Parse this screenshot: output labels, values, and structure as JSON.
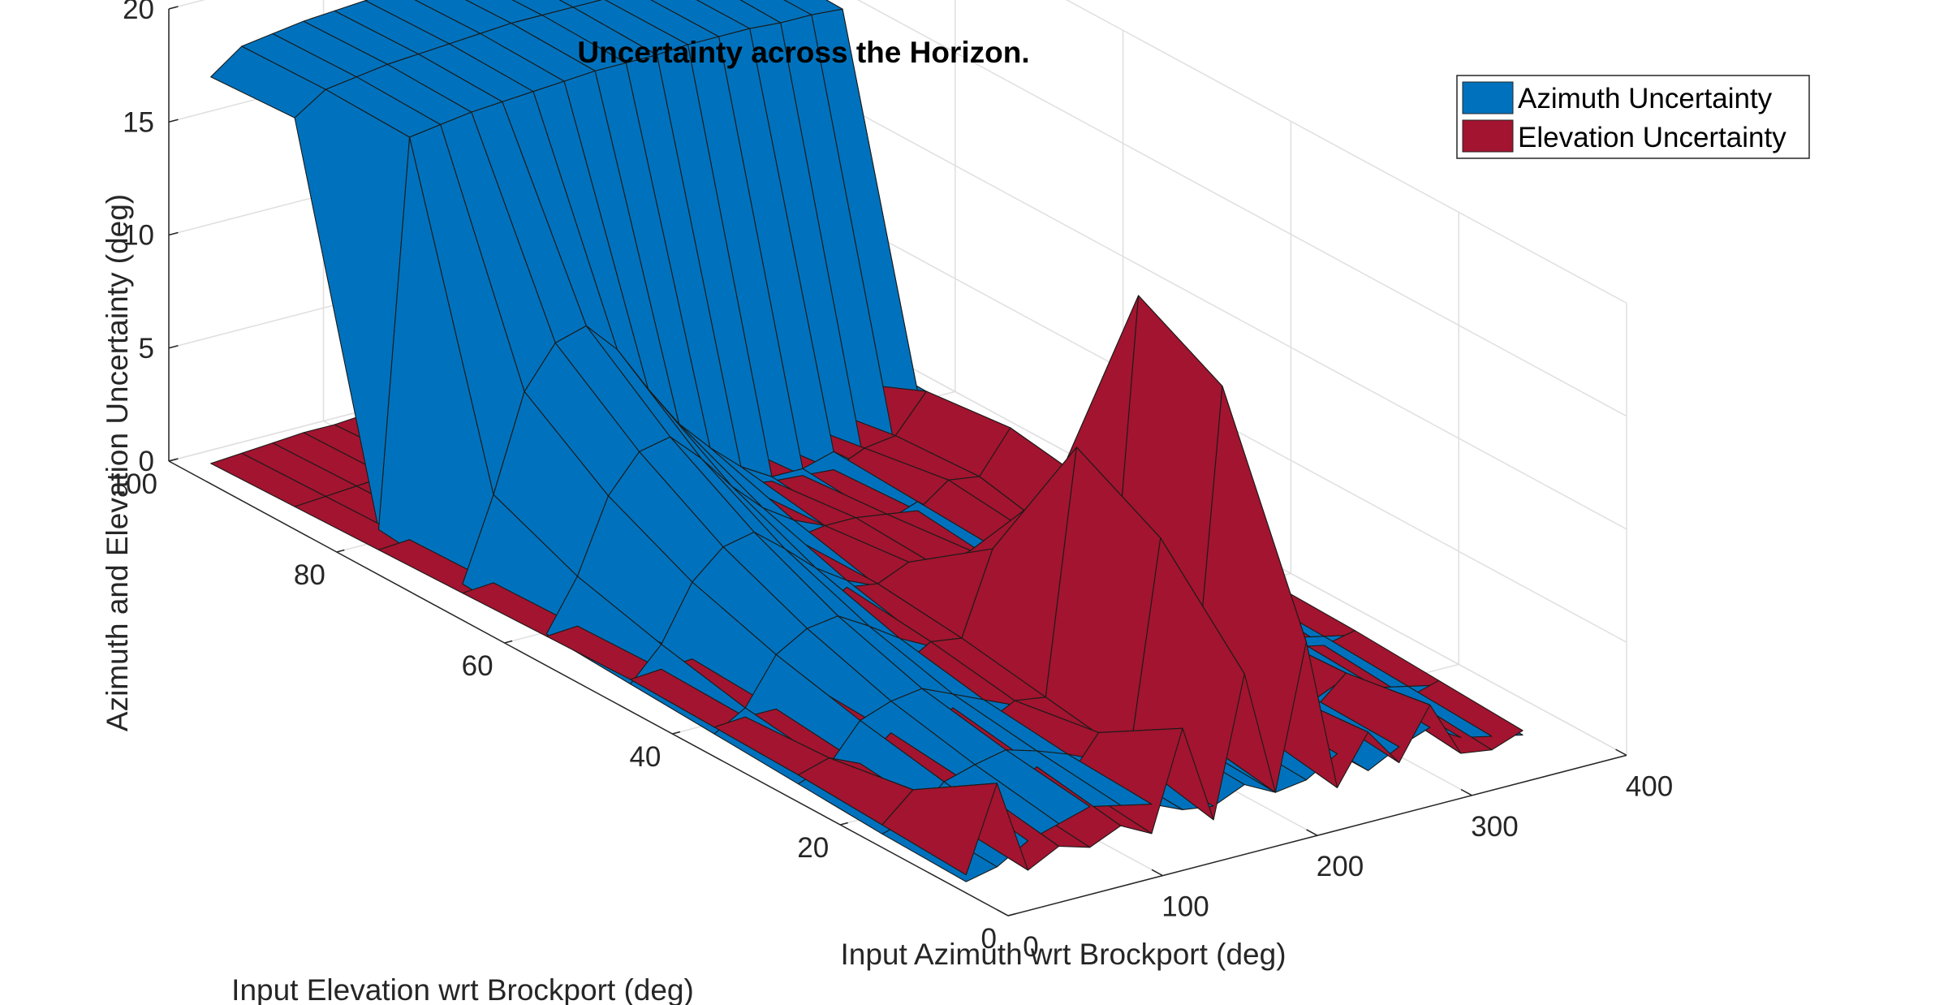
{
  "chart_data": {
    "type": "surface",
    "title": "Uncertainty across the Horizon.",
    "xlabel": "Input Azimuth wrt Brockport (deg)",
    "ylabel": "Input Elevation wrt Brockport (deg)",
    "zlabel": "Azimuth and Elevation Uncertainty (deg)",
    "xlim": [
      0,
      400
    ],
    "ylim": [
      0,
      100
    ],
    "zlim": [
      0,
      20
    ],
    "xticks": [
      "0",
      "100",
      "200",
      "300",
      "400"
    ],
    "yticks": [
      "0",
      "20",
      "40",
      "60",
      "80",
      "100"
    ],
    "zticks": [
      "0",
      "5",
      "10",
      "15",
      "20"
    ],
    "grid": true,
    "legend_position": "top-right",
    "azimuth_grid": [
      0,
      20,
      40,
      60,
      80,
      100,
      120,
      140,
      160,
      180,
      200,
      220,
      240,
      260,
      280,
      300,
      320,
      340,
      360
    ],
    "elevation_grid": [
      5,
      15,
      25,
      35,
      45,
      55,
      65,
      75,
      85,
      95
    ],
    "series": [
      {
        "name": "Azimuth Uncertainty",
        "color": "#0072BD",
        "values": [
          [
            0.5,
            0.8,
            1.6,
            2.0,
            2.4,
            2.1,
            1.8,
            1.2,
            1.0,
            1.6,
            0.9,
            1.1,
            1.9,
            0.8,
            1.5,
            2.0,
            1.2,
            0.9,
            0.6
          ],
          [
            0.6,
            1.0,
            2.2,
            2.6,
            2.9,
            2.5,
            2.0,
            1.4,
            1.2,
            1.8,
            1.1,
            1.3,
            2.1,
            1.0,
            1.6,
            2.2,
            1.4,
            1.1,
            0.8
          ],
          [
            0.8,
            1.3,
            2.9,
            3.4,
            3.6,
            3.0,
            2.4,
            1.8,
            1.5,
            2.0,
            1.3,
            1.6,
            2.4,
            1.2,
            1.8,
            2.4,
            1.6,
            1.3,
            1.0
          ],
          [
            1.0,
            1.8,
            3.8,
            4.6,
            4.8,
            4.0,
            3.1,
            2.4,
            2.0,
            2.3,
            1.6,
            1.9,
            2.6,
            1.5,
            2.0,
            2.5,
            1.8,
            1.4,
            1.1
          ],
          [
            1.2,
            2.6,
            5.0,
            6.2,
            6.5,
            5.4,
            4.2,
            3.3,
            2.7,
            2.6,
            2.0,
            2.2,
            2.8,
            1.8,
            2.2,
            2.6,
            1.9,
            1.5,
            1.2
          ],
          [
            1.4,
            3.6,
            6.8,
            8.4,
            8.7,
            7.4,
            5.8,
            4.5,
            3.6,
            3.0,
            2.4,
            2.5,
            3.0,
            2.0,
            2.4,
            2.7,
            2.0,
            1.6,
            1.3
          ],
          [
            1.6,
            5.2,
            9.4,
            11.2,
            11.6,
            10.2,
            8.1,
            6.2,
            4.8,
            3.6,
            2.8,
            2.8,
            3.2,
            2.2,
            2.5,
            2.8,
            2.1,
            1.7,
            1.4
          ],
          [
            2.0,
            19.0,
            19.2,
            19.4,
            19.5,
            19.6,
            19.7,
            19.8,
            19.8,
            19.8,
            19.9,
            19.9,
            19.9,
            19.8,
            19.8,
            19.7,
            2.2,
            1.8,
            1.5
          ],
          [
            18.2,
            19.1,
            19.3,
            19.5,
            19.6,
            19.7,
            19.8,
            19.9,
            19.9,
            19.9,
            19.9,
            19.9,
            19.9,
            19.9,
            19.8,
            19.8,
            2.3,
            1.9,
            1.6
          ],
          [
            18.0,
            19.0,
            19.2,
            19.4,
            19.5,
            19.6,
            19.7,
            19.8,
            19.8,
            19.9,
            19.9,
            19.9,
            19.9,
            19.8,
            19.8,
            19.7,
            2.4,
            2.0,
            1.7
          ]
        ]
      },
      {
        "name": "Elevation Uncertainty",
        "color": "#A2142F",
        "values": [
          [
            0.8,
            4.5,
            0.3,
            1.0,
            0.6,
            1.2,
            0.5,
            4.8,
            0.4,
            6.5,
            0.9,
            7.2,
            0.4,
            2.5,
            0.8,
            3.0,
            0.5,
            0.3,
            0.8
          ],
          [
            1.0,
            2.2,
            0.6,
            1.6,
            1.0,
            1.8,
            0.9,
            2.6,
            1.2,
            10.5,
            1.5,
            16.5,
            1.0,
            2.2,
            1.2,
            2.4,
            0.9,
            0.6,
            1.0
          ],
          [
            1.2,
            1.6,
            1.0,
            2.0,
            1.4,
            2.4,
            1.3,
            2.0,
            1.8,
            12.5,
            2.0,
            18.5,
            1.4,
            2.0,
            1.6,
            2.2,
            1.2,
            0.9,
            1.2
          ],
          [
            1.3,
            1.4,
            1.4,
            2.2,
            1.8,
            2.6,
            1.8,
            2.6,
            2.4,
            6.0,
            2.6,
            8.0,
            1.8,
            2.6,
            2.0,
            3.4,
            1.6,
            1.2,
            1.3
          ],
          [
            1.4,
            1.5,
            1.6,
            2.0,
            2.2,
            2.4,
            2.2,
            3.0,
            2.8,
            3.4,
            2.8,
            3.2,
            2.2,
            3.2,
            2.6,
            4.6,
            2.0,
            1.4,
            1.4
          ],
          [
            1.3,
            1.4,
            1.5,
            1.8,
            2.0,
            2.2,
            2.4,
            2.6,
            2.8,
            3.0,
            3.0,
            2.8,
            2.6,
            3.6,
            3.4,
            5.2,
            2.8,
            1.6,
            1.3
          ],
          [
            1.2,
            1.3,
            1.4,
            1.6,
            1.8,
            2.0,
            2.2,
            2.4,
            2.6,
            2.8,
            2.6,
            2.5,
            2.4,
            3.0,
            3.2,
            4.8,
            3.6,
            1.8,
            1.2
          ],
          [
            1.1,
            1.2,
            1.3,
            1.5,
            1.6,
            1.8,
            2.0,
            2.1,
            2.2,
            2.4,
            2.3,
            2.2,
            2.0,
            2.4,
            2.6,
            3.2,
            3.2,
            2.0,
            1.1
          ],
          [
            1.0,
            1.1,
            1.2,
            1.3,
            1.4,
            1.5,
            1.6,
            1.7,
            1.8,
            1.9,
            1.8,
            1.7,
            1.6,
            1.8,
            2.0,
            2.4,
            2.2,
            1.6,
            1.0
          ],
          [
            0.9,
            1.0,
            1.1,
            1.2,
            1.2,
            1.3,
            1.4,
            1.4,
            1.5,
            1.5,
            1.4,
            1.4,
            1.3,
            1.4,
            1.5,
            1.6,
            1.5,
            1.2,
            0.9
          ]
        ]
      }
    ]
  }
}
